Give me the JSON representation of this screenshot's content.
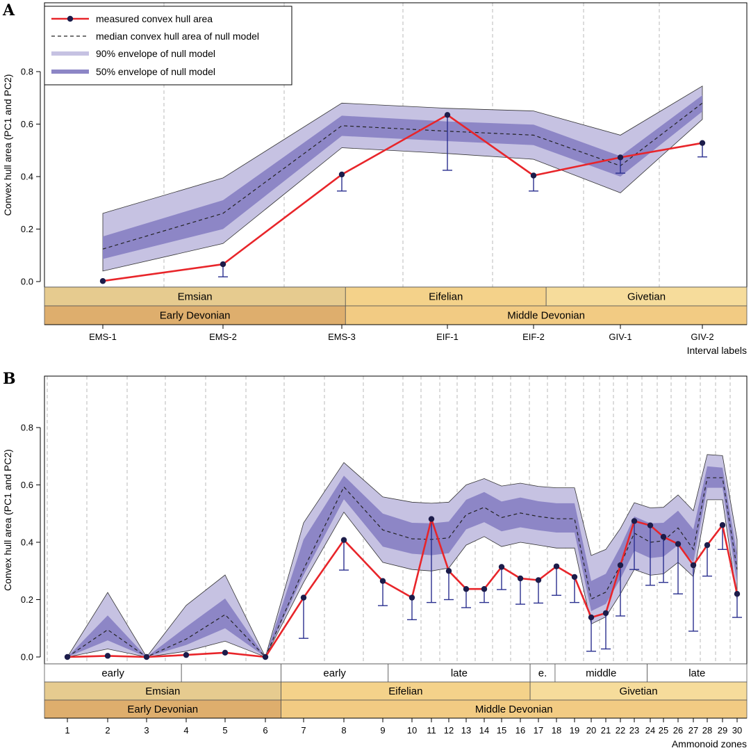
{
  "colors": {
    "measured": "#e8252a",
    "point": "#1c1c4a",
    "errorbar": "#2a2f8f",
    "env90": "#c6c2e2",
    "env50": "#8d86c6",
    "median": "#222222",
    "emsian": "#e6cb8f",
    "eifelian": "#f4d28a",
    "givetian": "#f6dc9b",
    "early_devonian": "#deae6d",
    "middle_devonian": "#f2cb83",
    "gridline": "#b8b8b8"
  },
  "chart_data": [
    {
      "panel": "A",
      "type": "line",
      "ylabel": "Convex hull area (PC1 and PC2)",
      "xlabel": "Interval labels",
      "ylim": [
        -0.02,
        0.9
      ],
      "yticks": [
        "0.0",
        "0.2",
        "0.4",
        "0.6",
        "0.8"
      ],
      "categories": [
        "EMS-1",
        "EMS-2",
        "EMS-3",
        "EIF-1",
        "EIF-2",
        "GIV-1",
        "GIV-2"
      ],
      "series": [
        {
          "name": "measured convex hull area",
          "values": [
            0.002,
            0.066,
            0.408,
            0.635,
            0.404,
            0.473,
            0.528
          ],
          "lower": [
            0.002,
            0.018,
            0.345,
            0.424,
            0.345,
            0.413,
            0.475
          ]
        },
        {
          "name": "median convex hull area of null model",
          "values": [
            0.124,
            0.26,
            0.594,
            0.573,
            0.558,
            0.441,
            0.68
          ]
        },
        {
          "name": "90% envelope of null model",
          "lower": [
            0.04,
            0.145,
            0.51,
            0.488,
            0.466,
            0.338,
            0.618
          ],
          "upper": [
            0.26,
            0.395,
            0.68,
            0.66,
            0.65,
            0.558,
            0.745
          ]
        },
        {
          "name": "50% envelope of null model",
          "lower": [
            0.086,
            0.2,
            0.555,
            0.535,
            0.52,
            0.4,
            0.648
          ],
          "upper": [
            0.172,
            0.31,
            0.632,
            0.61,
            0.598,
            0.478,
            0.71
          ]
        }
      ],
      "stage_bands": [
        {
          "label": "Emsian",
          "from": 0,
          "to": 3
        },
        {
          "label": "Eifelian",
          "from": 3,
          "to": 5
        },
        {
          "label": "Givetian",
          "from": 5,
          "to": 7
        }
      ],
      "period_bands": [
        {
          "label": "Early Devonian",
          "from": 0,
          "to": 3
        },
        {
          "label": "Middle Devonian",
          "from": 3,
          "to": 7
        }
      ],
      "legend": {
        "position": "top-left",
        "items": [
          "measured convex hull area",
          "median convex hull area of null model",
          "90% envelope of null model",
          "50% envelope of null model"
        ]
      }
    },
    {
      "panel": "B",
      "type": "line",
      "ylabel": "Convex hull area (PC1 and PC2)",
      "xlabel": "Ammonoid zones",
      "ylim": [
        -0.02,
        0.98
      ],
      "yticks": [
        "0.0",
        "0.2",
        "0.4",
        "0.6",
        "0.8"
      ],
      "categories": [
        "1",
        "2",
        "3",
        "4",
        "5",
        "6",
        "7",
        "8",
        "9",
        "10",
        "11",
        "12",
        "13",
        "14",
        "15",
        "16",
        "17",
        "18",
        "19",
        "20",
        "21",
        "22",
        "23",
        "24",
        "25",
        "26",
        "27",
        "28",
        "29",
        "30"
      ],
      "series": [
        {
          "name": "measured convex hull area",
          "values": [
            0.0,
            0.004,
            0.0,
            0.007,
            0.015,
            0.0,
            0.207,
            0.408,
            0.265,
            0.207,
            0.481,
            0.3,
            0.237,
            0.237,
            0.314,
            0.274,
            0.268,
            0.316,
            0.279,
            0.138,
            0.153,
            0.32,
            0.474,
            0.459,
            0.419,
            0.394,
            0.32,
            0.39,
            0.46,
            0.22
          ],
          "lower": [
            0.0,
            0.004,
            0.0,
            0.007,
            0.015,
            0.0,
            0.065,
            0.303,
            0.179,
            0.13,
            0.19,
            0.2,
            0.172,
            0.19,
            0.235,
            0.184,
            0.188,
            0.215,
            0.19,
            0.02,
            0.028,
            0.143,
            0.305,
            0.25,
            0.26,
            0.22,
            0.09,
            0.282,
            0.375,
            0.138
          ]
        },
        {
          "name": "median convex hull area of null model",
          "values": [
            0.0,
            0.095,
            0.0,
            0.062,
            0.148,
            0.0,
            0.306,
            0.593,
            0.443,
            0.412,
            0.41,
            0.415,
            0.496,
            0.522,
            0.486,
            0.502,
            0.49,
            0.482,
            0.482,
            0.202,
            0.226,
            0.32,
            0.432,
            0.4,
            0.405,
            0.45,
            0.375,
            0.625,
            0.625,
            0.305
          ]
        },
        {
          "name": "90% envelope of null model",
          "lower": [
            0.0,
            0.028,
            0.0,
            0.02,
            0.055,
            0.0,
            0.26,
            0.505,
            0.33,
            0.305,
            0.3,
            0.31,
            0.39,
            0.42,
            0.385,
            0.4,
            0.39,
            0.38,
            0.38,
            0.115,
            0.14,
            0.22,
            0.305,
            0.285,
            0.29,
            0.33,
            0.28,
            0.548,
            0.548,
            0.2
          ],
          "upper": [
            0.0,
            0.225,
            0.0,
            0.18,
            0.286,
            0.0,
            0.468,
            0.678,
            0.558,
            0.54,
            0.536,
            0.54,
            0.6,
            0.622,
            0.596,
            0.606,
            0.595,
            0.59,
            0.59,
            0.354,
            0.375,
            0.448,
            0.538,
            0.52,
            0.522,
            0.565,
            0.51,
            0.706,
            0.702,
            0.41
          ]
        },
        {
          "name": "50% envelope of null model",
          "lower": [
            0.0,
            0.058,
            0.0,
            0.042,
            0.1,
            0.0,
            0.285,
            0.55,
            0.385,
            0.36,
            0.355,
            0.362,
            0.445,
            0.47,
            0.438,
            0.452,
            0.442,
            0.434,
            0.434,
            0.16,
            0.185,
            0.272,
            0.37,
            0.345,
            0.35,
            0.39,
            0.33,
            0.59,
            0.59,
            0.255
          ],
          "upper": [
            0.0,
            0.145,
            0.0,
            0.105,
            0.204,
            0.0,
            0.41,
            0.632,
            0.5,
            0.468,
            0.466,
            0.472,
            0.548,
            0.575,
            0.542,
            0.556,
            0.543,
            0.536,
            0.536,
            0.265,
            0.29,
            0.385,
            0.49,
            0.466,
            0.468,
            0.51,
            0.445,
            0.665,
            0.66,
            0.355
          ]
        }
      ],
      "substage_bands": [
        {
          "label": "early",
          "from": 0,
          "to": 5.5
        },
        {
          "label": "",
          "from": 5.5,
          "to": 9.5
        },
        {
          "label": "early",
          "from": 9.5,
          "to": 13.8
        },
        {
          "label": "late",
          "from": 13.8,
          "to": 19.5
        },
        {
          "label": "e.",
          "from": 19.5,
          "to": 20.5
        },
        {
          "label": "middle",
          "from": 20.5,
          "to": 24.2
        },
        {
          "label": "late",
          "from": 24.2,
          "to": 28.2
        }
      ],
      "stage_bands": [
        {
          "label": "Emsian",
          "from": 0,
          "to": 9.5
        },
        {
          "label": "Eifelian",
          "from": 9.5,
          "to": 19.5
        },
        {
          "label": "Givetian",
          "from": 19.5,
          "to": 28.2
        }
      ],
      "period_bands": [
        {
          "label": "Early Devonian",
          "from": 0,
          "to": 9.5
        },
        {
          "label": "Middle Devonian",
          "from": 9.5,
          "to": 28.2
        }
      ]
    }
  ]
}
